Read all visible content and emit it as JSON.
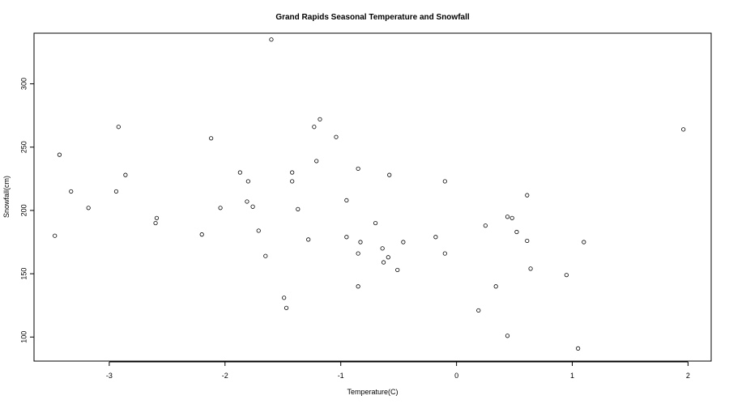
{
  "chart_data": {
    "type": "scatter",
    "title": "Grand Rapids Seasonal Temperature and Snowfall",
    "xlabel": "Temperature(C)",
    "ylabel": "Snowfall(cm)",
    "xlim": [
      -3.65,
      2.2
    ],
    "ylim": [
      81,
      340
    ],
    "xticks": [
      -3,
      -2,
      -1,
      0,
      1,
      2
    ],
    "yticks": [
      100,
      150,
      200,
      250,
      300
    ],
    "grid": false,
    "legend": "none",
    "marker": "open-circle",
    "colors": {
      "points": "#000000",
      "axes": "#000000"
    },
    "points": [
      [
        -3.47,
        180
      ],
      [
        -3.43,
        244
      ],
      [
        -3.33,
        215
      ],
      [
        -3.18,
        202
      ],
      [
        -2.94,
        215
      ],
      [
        -2.92,
        266
      ],
      [
        -2.86,
        228
      ],
      [
        -2.6,
        190
      ],
      [
        -2.59,
        194
      ],
      [
        -2.2,
        181
      ],
      [
        -2.12,
        257
      ],
      [
        -2.04,
        202
      ],
      [
        -1.87,
        230
      ],
      [
        -1.81,
        207
      ],
      [
        -1.8,
        223
      ],
      [
        -1.76,
        203
      ],
      [
        -1.71,
        184
      ],
      [
        -1.65,
        164
      ],
      [
        -1.6,
        335
      ],
      [
        -1.49,
        131
      ],
      [
        -1.47,
        123
      ],
      [
        -1.42,
        230
      ],
      [
        -1.42,
        223
      ],
      [
        -1.37,
        201
      ],
      [
        -1.28,
        177
      ],
      [
        -1.23,
        266
      ],
      [
        -1.21,
        239
      ],
      [
        -1.18,
        272
      ],
      [
        -1.04,
        258
      ],
      [
        -0.95,
        208
      ],
      [
        -0.95,
        179
      ],
      [
        -0.85,
        233
      ],
      [
        -0.85,
        166
      ],
      [
        -0.85,
        140
      ],
      [
        -0.83,
        175
      ],
      [
        -0.7,
        190
      ],
      [
        -0.64,
        170
      ],
      [
        -0.63,
        159
      ],
      [
        -0.59,
        163
      ],
      [
        -0.58,
        228
      ],
      [
        -0.51,
        153
      ],
      [
        -0.46,
        175
      ],
      [
        -0.18,
        179
      ],
      [
        -0.1,
        223
      ],
      [
        -0.1,
        166
      ],
      [
        0.19,
        121
      ],
      [
        0.25,
        188
      ],
      [
        0.34,
        140
      ],
      [
        0.44,
        195
      ],
      [
        0.44,
        101
      ],
      [
        0.48,
        194
      ],
      [
        0.52,
        183
      ],
      [
        0.61,
        212
      ],
      [
        0.61,
        176
      ],
      [
        0.64,
        154
      ],
      [
        0.95,
        149
      ],
      [
        1.05,
        91
      ],
      [
        1.1,
        175
      ],
      [
        1.96,
        264
      ]
    ]
  }
}
